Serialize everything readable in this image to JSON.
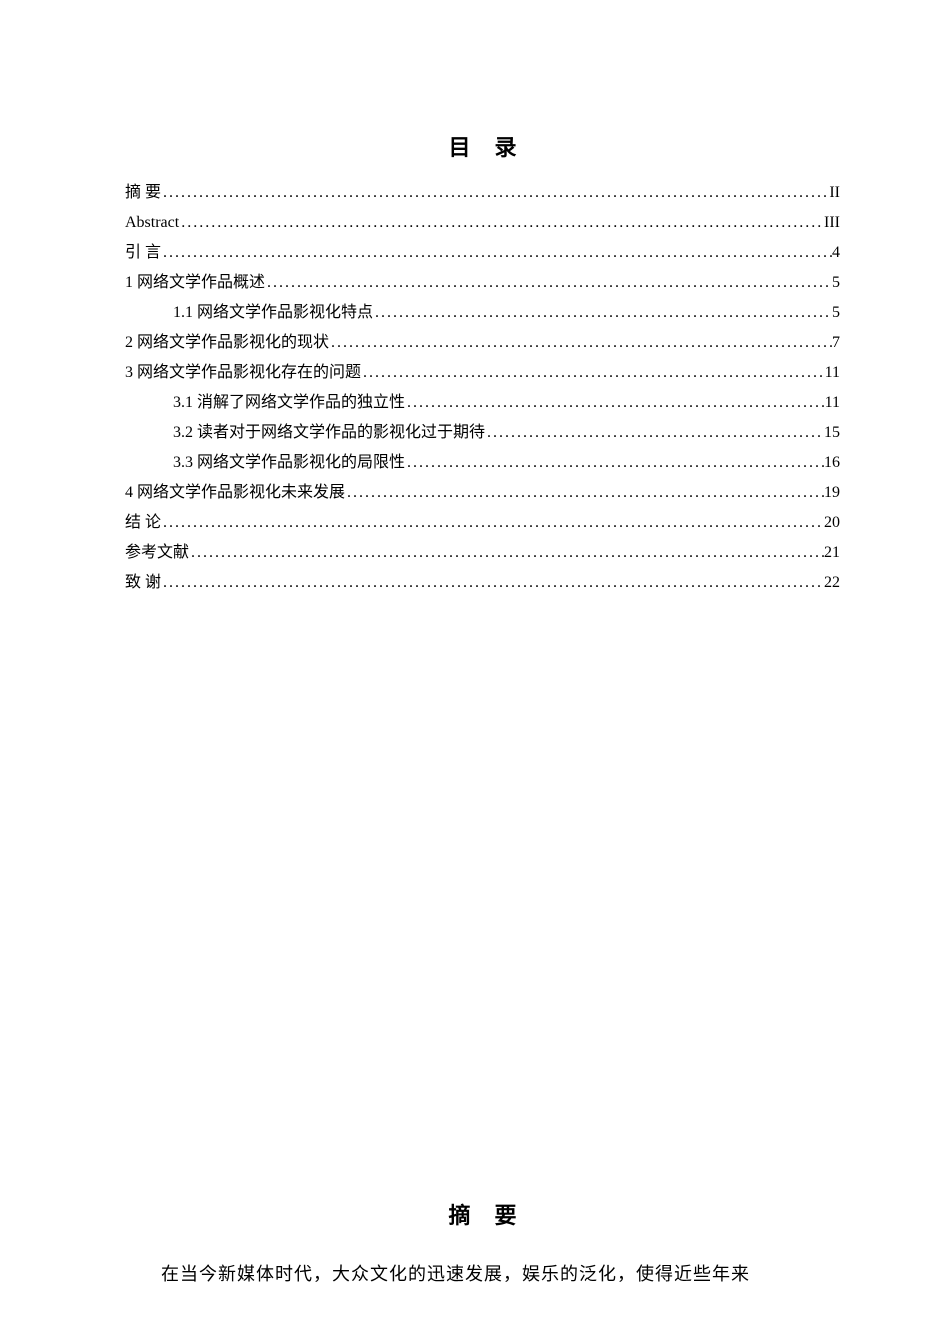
{
  "toc": {
    "title": "目录",
    "items": [
      {
        "label": "摘    要",
        "page": "II",
        "indent": 0,
        "spaced": false
      },
      {
        "label": "Abstract",
        "page": "III",
        "indent": 0,
        "spaced": false
      },
      {
        "label": "引    言",
        "page": "4",
        "indent": 0,
        "spaced": false
      },
      {
        "label": "1 网络文学作品概述",
        "page": "5",
        "indent": 0,
        "spaced": false
      },
      {
        "label": "1.1 网络文学作品影视化特点",
        "page": "5",
        "indent": 1,
        "spaced": false
      },
      {
        "label": "2  网络文学作品影视化的现状",
        "page": "7",
        "indent": 0,
        "spaced": false
      },
      {
        "label": "3  网络文学作品影视化存在的问题",
        "page": "11",
        "indent": 0,
        "spaced": false
      },
      {
        "label": "3.1 消解了网络文学作品的独立性",
        "page": "11",
        "indent": 1,
        "spaced": false
      },
      {
        "label": "3.2 读者对于网络文学作品的影视化过于期待",
        "page": "15",
        "indent": 1,
        "spaced": false
      },
      {
        "label": "3.3 网络文学作品影视化的局限性",
        "page": "16",
        "indent": 1,
        "spaced": false
      },
      {
        "label": "4  网络文学作品影视化未来发展",
        "page": "19",
        "indent": 0,
        "spaced": false
      },
      {
        "label": "结    论",
        "page": "20",
        "indent": 0,
        "spaced": false
      },
      {
        "label": "参考文献",
        "page": "21",
        "indent": 0,
        "spaced": false
      },
      {
        "label": "致    谢",
        "page": "22",
        "indent": 0,
        "spaced": false
      }
    ]
  },
  "abstract": {
    "title": "摘要",
    "body": "在当今新媒体时代，大众文化的迅速发展，娱乐的泛化，使得近些年来"
  },
  "dots": "..................................................................................................................................................................................."
}
